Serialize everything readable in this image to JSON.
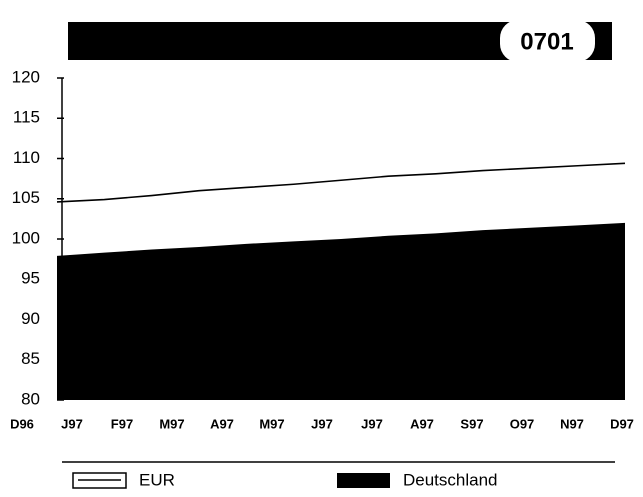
{
  "chart_data": {
    "type": "area",
    "badge": "0701",
    "categories": [
      "D96",
      "J97",
      "F97",
      "M97",
      "A97",
      "M97",
      "J97",
      "J97",
      "A97",
      "S97",
      "O97",
      "N97",
      "D97"
    ],
    "series": [
      {
        "name": "EUR",
        "color": "#000000",
        "style": "line",
        "values": [
          104.6,
          104.9,
          105.4,
          106.0,
          106.4,
          106.8,
          107.3,
          107.8,
          108.1,
          108.5,
          108.8,
          109.1,
          109.4
        ]
      },
      {
        "name": "Deutschland",
        "color": "#000000",
        "style": "area",
        "values": [
          97.9,
          98.3,
          98.7,
          99.0,
          99.4,
          99.7,
          100.0,
          100.4,
          100.7,
          101.1,
          101.4,
          101.7,
          102.0
        ]
      }
    ],
    "ylim": [
      80,
      120
    ],
    "yticks": [
      80,
      85,
      90,
      95,
      100,
      105,
      110,
      115,
      120
    ],
    "grid": false
  }
}
